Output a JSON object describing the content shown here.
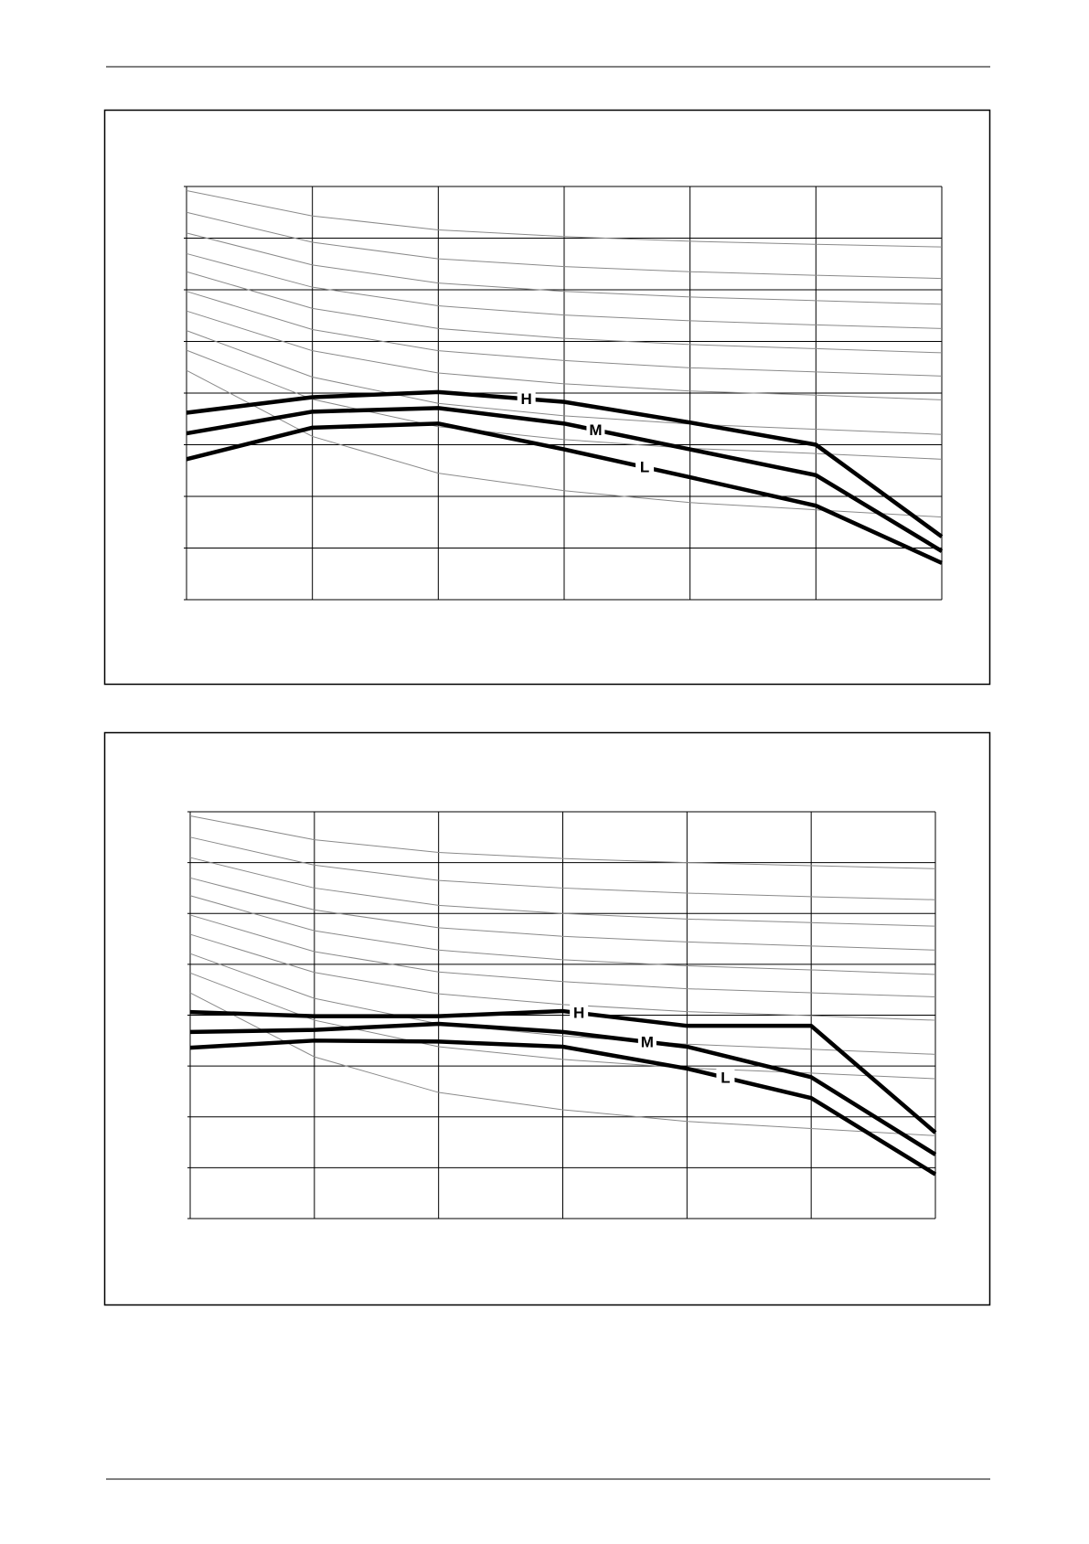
{
  "chart_data": [
    {
      "type": "line",
      "x": [
        0,
        1,
        2,
        3,
        4,
        5,
        6
      ],
      "xlim": [
        0,
        6
      ],
      "xticks": [
        0,
        1,
        2,
        3,
        4,
        5,
        6
      ],
      "ylim": [
        0,
        8
      ],
      "yticks": [
        0,
        1,
        2,
        3,
        4,
        5,
        6,
        7,
        8
      ],
      "grid": true,
      "series": [
        {
          "name": "H",
          "color": "#000000",
          "values": [
            3.62,
            3.92,
            4.02,
            3.83,
            3.43,
            3.0,
            1.22
          ]
        },
        {
          "name": "M",
          "color": "#000000",
          "values": [
            3.22,
            3.64,
            3.71,
            3.41,
            2.91,
            2.41,
            0.94
          ]
        },
        {
          "name": "L",
          "color": "#000000",
          "values": [
            2.72,
            3.33,
            3.41,
            2.91,
            2.37,
            1.82,
            0.71
          ]
        }
      ],
      "curve_color": "#8a8a8a",
      "curves": [
        [
          7.92,
          7.43,
          7.16,
          7.03,
          6.94,
          6.88,
          6.83
        ],
        [
          7.5,
          6.92,
          6.6,
          6.45,
          6.35,
          6.28,
          6.22
        ],
        [
          7.1,
          6.48,
          6.13,
          5.97,
          5.86,
          5.79,
          5.72
        ],
        [
          6.7,
          6.05,
          5.69,
          5.51,
          5.4,
          5.32,
          5.25
        ],
        [
          6.35,
          5.64,
          5.25,
          5.06,
          4.94,
          4.86,
          4.78
        ],
        [
          5.97,
          5.23,
          4.82,
          4.63,
          4.49,
          4.41,
          4.33
        ],
        [
          5.59,
          4.82,
          4.39,
          4.18,
          4.04,
          3.96,
          3.87
        ],
        [
          5.21,
          4.31,
          3.8,
          3.56,
          3.4,
          3.3,
          3.2
        ],
        [
          4.83,
          3.88,
          3.35,
          3.1,
          2.93,
          2.83,
          2.72
        ],
        [
          4.44,
          3.16,
          2.45,
          2.11,
          1.88,
          1.74,
          1.6
        ]
      ]
    },
    {
      "type": "line",
      "x": [
        0,
        1,
        2,
        3,
        4,
        5,
        6
      ],
      "xlim": [
        0,
        6
      ],
      "xticks": [
        0,
        1,
        2,
        3,
        4,
        5,
        6
      ],
      "ylim": [
        0,
        8
      ],
      "yticks": [
        0,
        1,
        2,
        3,
        4,
        5,
        6,
        7,
        8
      ],
      "grid": true,
      "series": [
        {
          "name": "H",
          "color": "#000000",
          "values": [
            4.06,
            3.98,
            3.98,
            4.08,
            3.79,
            3.79,
            1.69
          ]
        },
        {
          "name": "M",
          "color": "#000000",
          "values": [
            3.67,
            3.71,
            3.83,
            3.67,
            3.38,
            2.78,
            1.26
          ]
        },
        {
          "name": "L",
          "color": "#000000",
          "values": [
            3.36,
            3.5,
            3.48,
            3.38,
            2.95,
            2.37,
            0.87
          ]
        }
      ],
      "curve_color": "#8a8a8a",
      "curves": [
        [
          7.92,
          7.45,
          7.2,
          7.08,
          7.0,
          6.94,
          6.88
        ],
        [
          7.5,
          6.95,
          6.65,
          6.5,
          6.4,
          6.33,
          6.27
        ],
        [
          7.1,
          6.5,
          6.16,
          6.0,
          5.89,
          5.82,
          5.75
        ],
        [
          6.7,
          6.07,
          5.72,
          5.55,
          5.44,
          5.36,
          5.28
        ],
        [
          6.35,
          5.66,
          5.28,
          5.09,
          4.97,
          4.89,
          4.8
        ],
        [
          5.97,
          5.25,
          4.85,
          4.66,
          4.52,
          4.44,
          4.36
        ],
        [
          5.59,
          4.84,
          4.42,
          4.21,
          4.07,
          3.99,
          3.9
        ],
        [
          5.21,
          4.33,
          3.83,
          3.59,
          3.43,
          3.33,
          3.23
        ],
        [
          4.83,
          3.9,
          3.38,
          3.13,
          2.96,
          2.86,
          2.75
        ],
        [
          4.44,
          3.18,
          2.48,
          2.14,
          1.91,
          1.77,
          1.63
        ]
      ]
    }
  ]
}
